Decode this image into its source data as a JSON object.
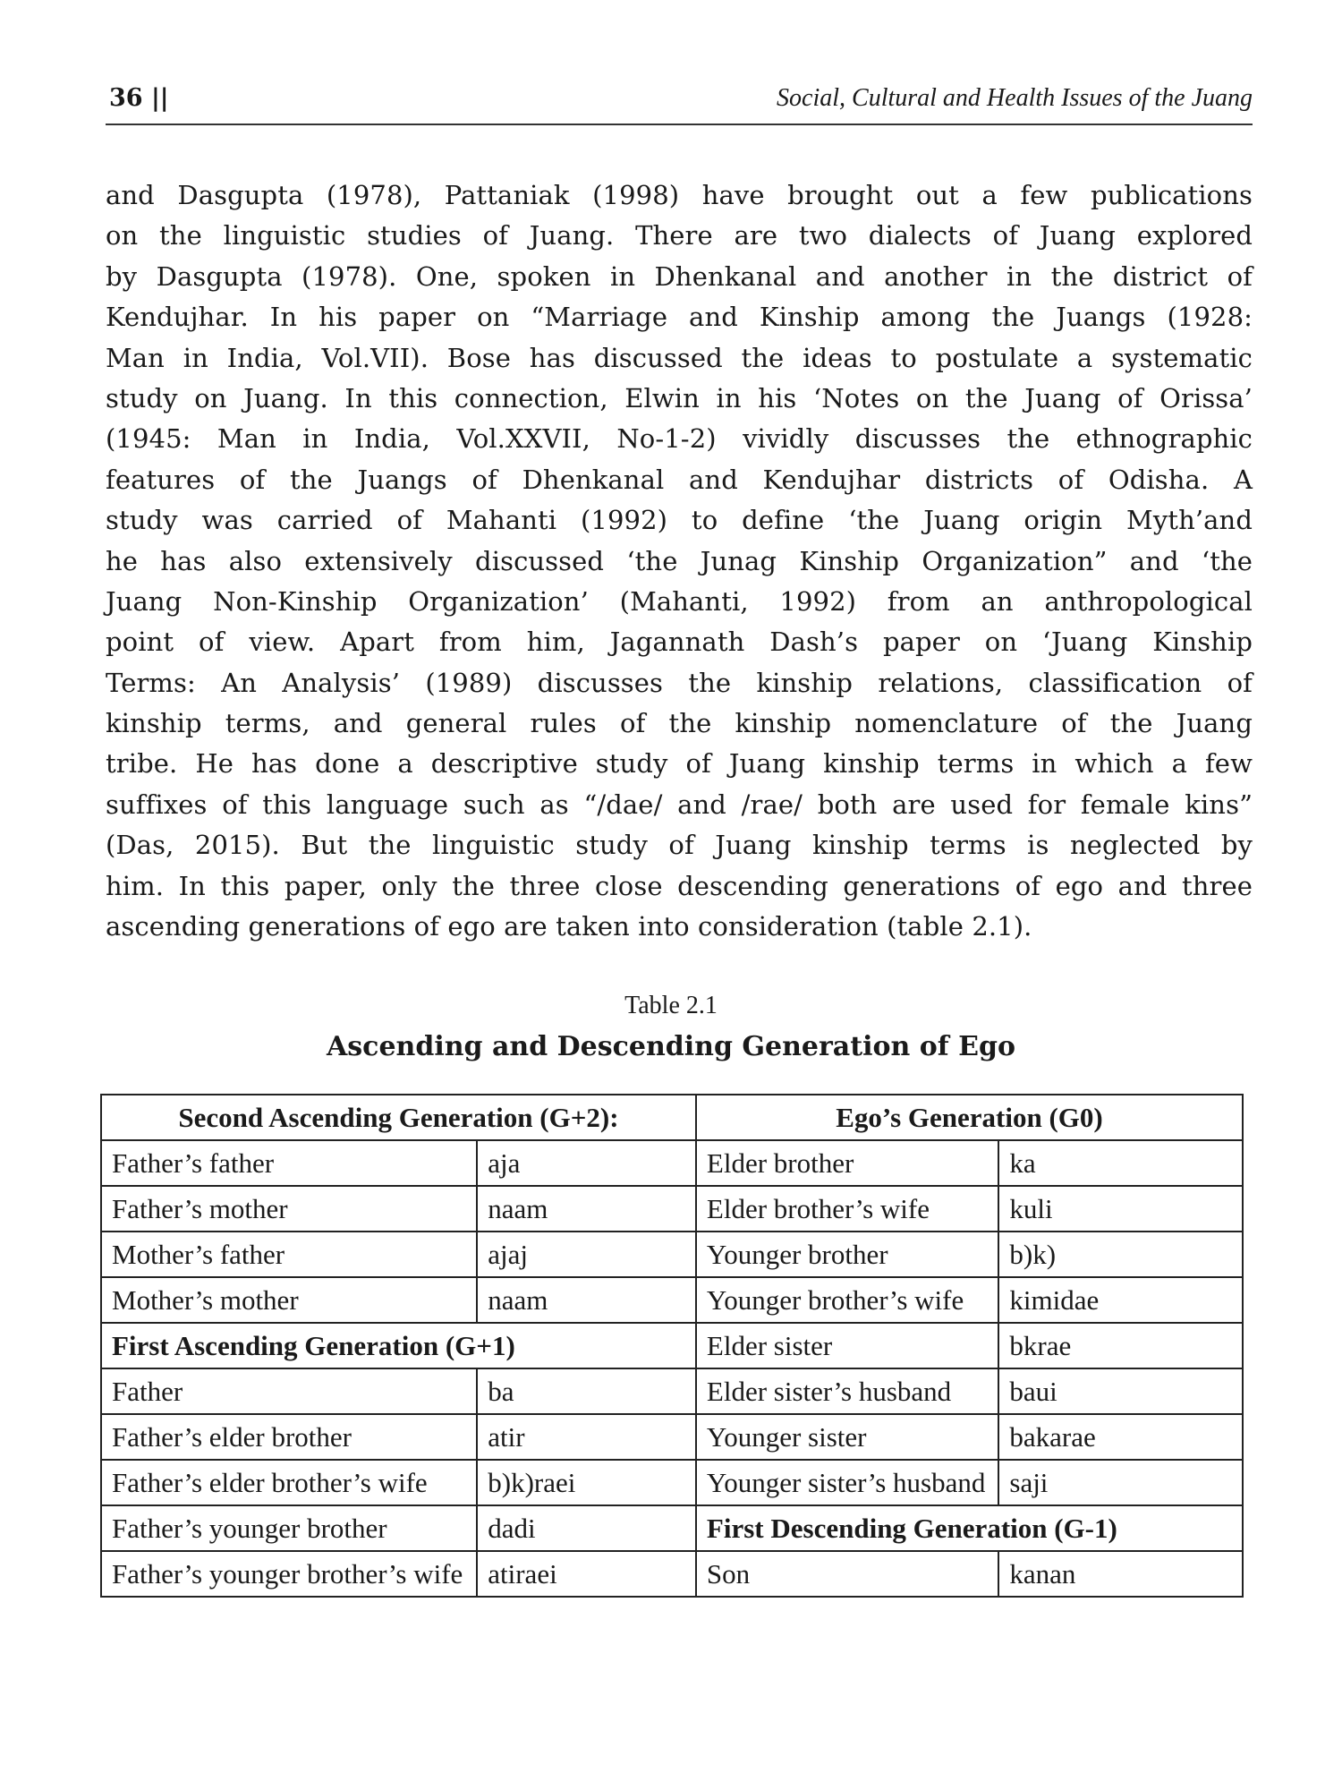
{
  "header": {
    "page_number": "36 ||",
    "running_title": "Social, Cultural and Health Issues of the Juang"
  },
  "body_lines": [
    "and Dasgupta (1978), Pattaniak (1998) have brought out a few publications",
    "on the linguistic studies of Juang. There are two dialects of Juang explored",
    "by Dasgupta (1978). One, spoken in Dhenkanal and another in the district of",
    "Kendujhar. In his paper on “Marriage and Kinship among the Juangs (1928:",
    "Man in India, Vol.VII). Bose has discussed the ideas to postulate a systematic",
    "study on Juang. In this connection, Elwin in his ‘Notes on the Juang of Orissa’",
    "(1945: Man in India, Vol.XXVII, No-1-2) vividly discusses the ethnographic",
    "features of the Juangs of Dhenkanal and Kendujhar districts of Odisha. A",
    "study was carried of Mahanti (1992) to define ‘the Juang origin Myth’and",
    "he has also extensively discussed ‘the Junag Kinship Organization” and ‘the",
    "Juang Non-Kinship Organization’ (Mahanti, 1992) from an anthropological",
    "point of view. Apart from him, Jagannath Dash’s paper on ‘Juang Kinship",
    "Terms: An Analysis’ (1989) discusses the kinship relations, classification of",
    "kinship terms, and general rules of the kinship nomenclature of the Juang",
    "tribe. He has done a descriptive study of Juang kinship terms in which a few",
    "suffixes of this language such as “/dae/ and /rae/ both are used for female kins”",
    "(Das, 2015). But the linguistic study of Juang kinship terms is neglected by",
    "him. In this paper, only the three close descending generations of ego and three",
    "ascending generations of ego are taken into consideration (table 2.1)."
  ],
  "table": {
    "label": "Table 2.1",
    "title": "Ascending and Descending Generation of Ego",
    "header_left": "Second Ascending Generation (G+2):",
    "header_right": "Ego’s Generation (G0)",
    "rows": [
      {
        "l1": "Father’s father",
        "l2": "aja",
        "r1": "Elder brother",
        "r2": "ka"
      },
      {
        "l1": "Father’s mother",
        "l2": "naam",
        "r1": "Elder brother’s wife",
        "r2": "kuli"
      },
      {
        "l1": "Mother’s father",
        "l2": "ajaj",
        "r1": "Younger brother",
        "r2": "b)k)"
      },
      {
        "l1": "Mother’s mother",
        "l2": "naam",
        "r1": "Younger brother’s wife",
        "r2": "kimidae"
      },
      {
        "lh": "First Ascending Generation (G+1)",
        "r1": "Elder sister",
        "r2": "bkrae"
      },
      {
        "l1": "Father",
        "l2": "ba",
        "r1": "Elder sister’s husband",
        "r2": "baui"
      },
      {
        "l1": "Father’s elder brother",
        "l2": "atir",
        "r1": "Younger sister",
        "r2": "bakarae"
      },
      {
        "l1": "Father’s elder brother’s wife",
        "l2": "b)k)raei",
        "r1": "Younger sister’s husband",
        "r2": "saji"
      },
      {
        "l1": "Father’s younger brother",
        "l2": "dadi",
        "rh": "First Descending Generation (G-1)"
      },
      {
        "l1": "Father’s younger brother’s wife",
        "l2": "atiraei",
        "r1": "Son",
        "r2": "kanan"
      }
    ]
  }
}
